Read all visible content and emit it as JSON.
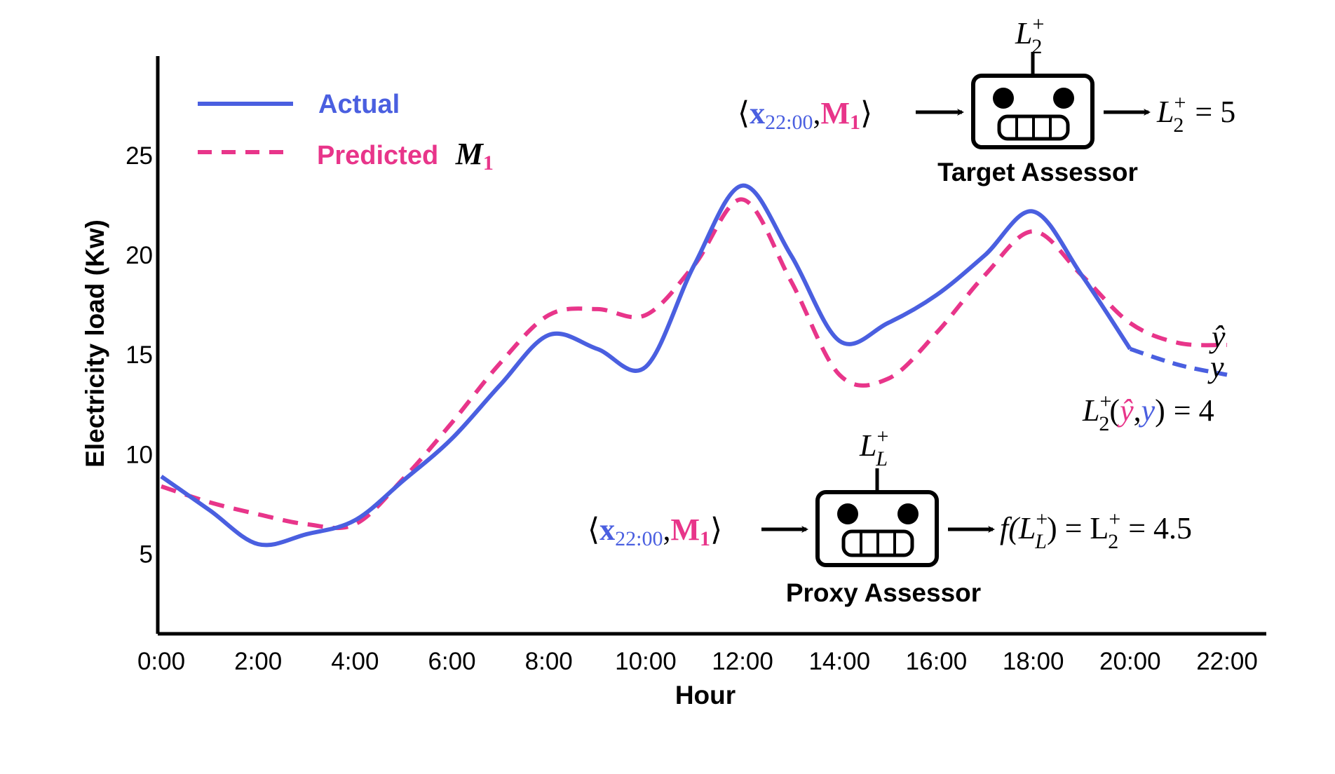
{
  "colors": {
    "actual": "#4a5fe0",
    "predicted": "#e8358a",
    "axis": "#000000"
  },
  "chart_data": {
    "type": "line",
    "xlabel": "Hour",
    "ylabel": "Electricity load (Kw)",
    "x": [
      "0:00",
      "1:00",
      "2:00",
      "3:00",
      "4:00",
      "5:00",
      "6:00",
      "7:00",
      "8:00",
      "9:00",
      "10:00",
      "11:00",
      "12:00",
      "13:00",
      "14:00",
      "15:00",
      "16:00",
      "17:00",
      "18:00",
      "19:00",
      "20:00",
      "21:00",
      "22:00"
    ],
    "x_tick_labels": [
      "0:00",
      "2:00",
      "4:00",
      "6:00",
      "8:00",
      "10:00",
      "12:00",
      "14:00",
      "16:00",
      "18:00",
      "20:00",
      "22:00"
    ],
    "y_tick_labels": [
      "5",
      "10",
      "15",
      "20",
      "25"
    ],
    "ylim": [
      1,
      30
    ],
    "grid": false,
    "legend_position": "top-left",
    "series": [
      {
        "name": "Actual",
        "style": "solid",
        "values": [
          8.9,
          7.2,
          5.5,
          6.0,
          6.7,
          8.7,
          10.8,
          13.5,
          16.0,
          15.3,
          14.4,
          19.5,
          23.5,
          20.0,
          15.7,
          16.6,
          18.0,
          20.0,
          22.2,
          19.0,
          15.3,
          14.5,
          14.0
        ]
      },
      {
        "name": "Predicted",
        "name_subscript_label": "M",
        "name_subscript_index": "1",
        "style": "dashed",
        "values": [
          8.4,
          7.6,
          7.0,
          6.5,
          6.5,
          8.8,
          11.6,
          14.6,
          17.0,
          17.3,
          17.0,
          19.5,
          22.8,
          18.7,
          14.0,
          13.8,
          16.1,
          19.0,
          21.2,
          19.0,
          16.6,
          15.6,
          15.5
        ]
      }
    ],
    "annotations": {
      "target": {
        "input_x": "x",
        "input_x_sub": "22:00",
        "input_m": "M",
        "input_m_sub": "1",
        "robot_label": "L",
        "robot_label_sub": "2",
        "robot_label_sup": "+",
        "output_lhs": "L",
        "output_sub": "2",
        "output_sup": "+",
        "output_rhs": "= 5",
        "caption": "Target Assessor"
      },
      "proxy": {
        "input_x": "x",
        "input_x_sub": "22:00",
        "input_m": "M",
        "input_m_sub": "1",
        "robot_label": "L",
        "robot_label_sub": "L",
        "robot_label_sup": "+",
        "output_f": "f(L",
        "output_f_sub": "L",
        "output_f_sup": "+",
        "output_mid": ") = L",
        "output_sub": "2",
        "output_sup": "+",
        "output_rhs": "= 4.5",
        "caption": "Proxy Assessor"
      },
      "yhat_label": "ŷ",
      "y_label": "y",
      "loss": {
        "lhs": "L",
        "sub": "2",
        "sup": "+",
        "open": "(",
        "yhat": "ŷ",
        "comma": ",",
        "y": "y",
        "close": ")",
        "rhs": "= 4"
      }
    }
  }
}
